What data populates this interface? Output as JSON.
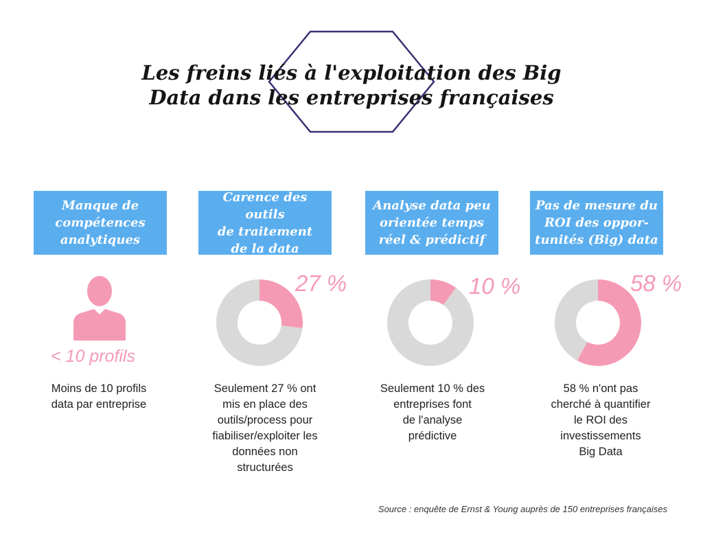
{
  "title": {
    "line1": "Les freins liés à l'exploitation des Big",
    "line2": "Data dans les entreprises françaises"
  },
  "colors": {
    "card": "#5baeee",
    "accent": "#f59ab5",
    "ring": "#d9d9d9",
    "hexagon": "#3a2f72"
  },
  "blocks": [
    {
      "header": "Manque de\ncompétences\nanalytiques",
      "icon": "person-icon",
      "metric": "< 10 profils",
      "description": "Moins de 10 profils\ndata par entreprise"
    },
    {
      "header": "Carence des outils\nde traitement\nde la data",
      "metric": "27 %",
      "description": "Seulement 27 % ont\nmis en place des\noutils/process pour\nfiabiliser/exploiter les\ndonnées non\nstructurées"
    },
    {
      "header": "Analyse data peu\norientée temps\nréel & prédictif",
      "metric": "10 %",
      "description": "Seulement 10 % des\nentreprises font\nde l'analyse\nprédictive"
    },
    {
      "header": "Pas de mesure du\nROI des oppor-\ntunités (Big) data",
      "metric": "58 %",
      "description": "58 % n'ont pas\ncherché à quantifier\nle ROI des\ninvestissements\nBig Data"
    }
  ],
  "source": "Source : enquête de Ernst & Young auprès de 150 entreprises françaises",
  "chart_data": {
    "type": "pie",
    "variant": "donut",
    "charts": [
      {
        "label": "Carence des outils de traitement de la data",
        "value": 27,
        "remainder": 73,
        "unit": "%"
      },
      {
        "label": "Analyse data peu orientée temps réel & prédictif",
        "value": 10,
        "remainder": 90,
        "unit": "%"
      },
      {
        "label": "Pas de mesure du ROI des opportunités (Big) data",
        "value": 58,
        "remainder": 42,
        "unit": "%"
      }
    ]
  }
}
